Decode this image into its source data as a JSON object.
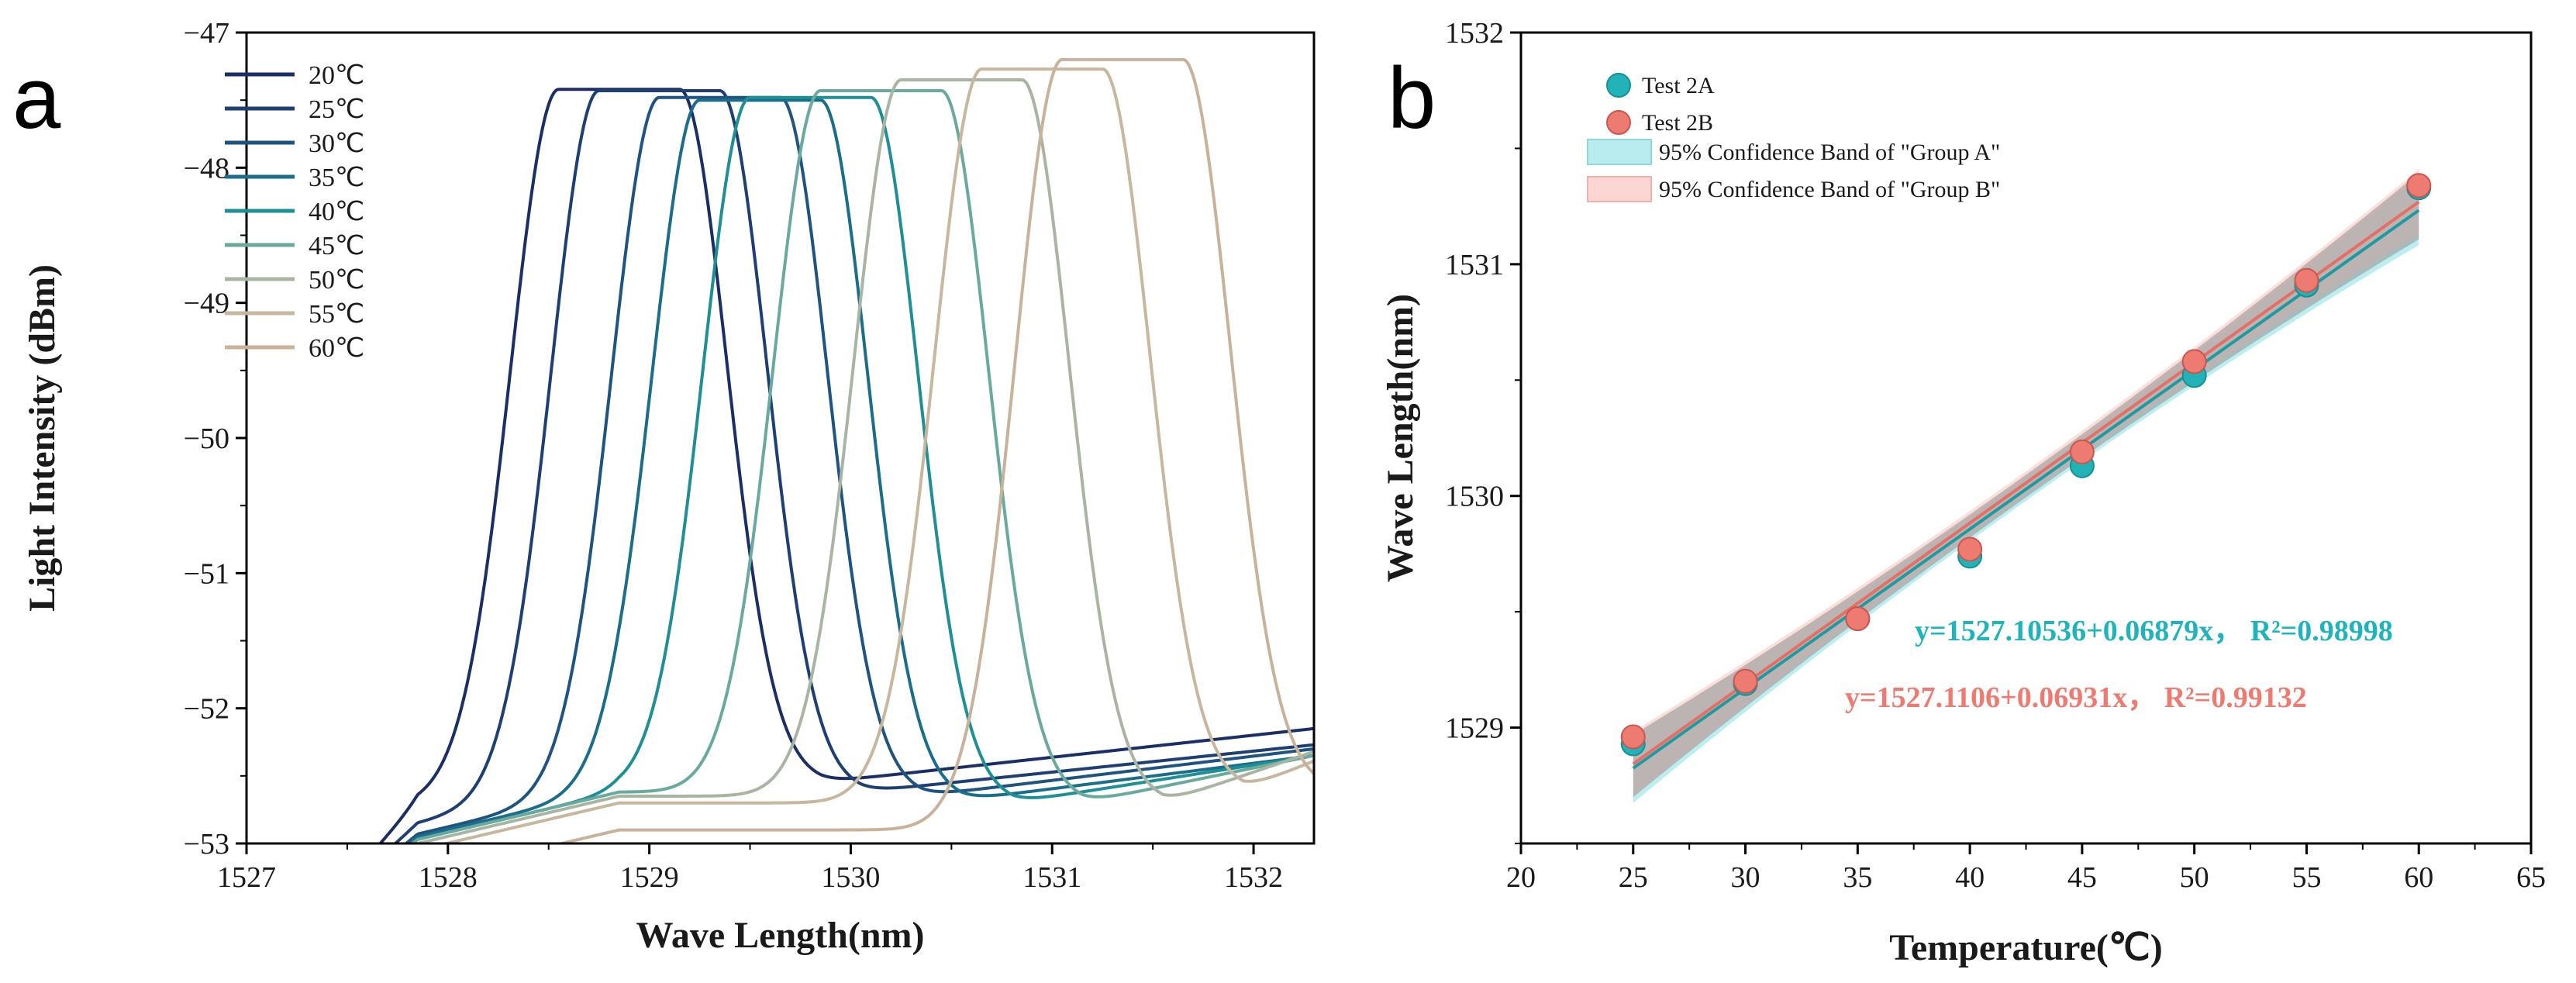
{
  "panels": {
    "a": "a",
    "b": "b"
  },
  "chart_data": [
    {
      "type": "line",
      "xlabel": "Wave Length(nm)",
      "ylabel": "Light Intensity (dBm)",
      "xlim": [
        1527,
        1532.3
      ],
      "ylim": [
        -53,
        -47
      ],
      "xticks": [
        1527,
        1528,
        1529,
        1530,
        1531,
        1532
      ],
      "yticks": [
        -53,
        -52,
        -51,
        -50,
        -49,
        -48,
        -47
      ],
      "xtick_labels": [
        "1527",
        "1528",
        "1529",
        "1530",
        "1531",
        "1532"
      ],
      "ytick_labels": [
        "−53",
        "−52",
        "−51",
        "−50",
        "−49",
        "−48",
        "−47"
      ],
      "series": [
        {
          "name": "20℃",
          "color": "#1b2f66",
          "center": 1528.85,
          "peak": -47.42,
          "left_floor": -52.35,
          "right_floor": -52.55,
          "right_end": -52.15
        },
        {
          "name": "25℃",
          "color": "#1e3f74",
          "center": 1529.05,
          "peak": -47.43,
          "left_floor": -52.5,
          "right_floor": -52.62,
          "right_end": -52.27
        },
        {
          "name": "30℃",
          "color": "#1f5480",
          "center": 1529.35,
          "peak": -47.48,
          "left_floor": -52.58,
          "right_floor": -52.65,
          "right_end": -52.3
        },
        {
          "name": "35℃",
          "color": "#1b6e8a",
          "center": 1529.55,
          "peak": -47.5,
          "left_floor": -52.6,
          "right_floor": -52.68,
          "right_end": -52.35
        },
        {
          "name": "40℃",
          "color": "#1f8f96",
          "center": 1529.8,
          "peak": -47.48,
          "left_floor": -52.62,
          "right_floor": -52.7,
          "right_end": -52.35
        },
        {
          "name": "45℃",
          "color": "#6aa99d",
          "center": 1530.15,
          "peak": -47.43,
          "left_floor": -52.62,
          "right_floor": -52.7,
          "right_end": -52.35
        },
        {
          "name": "50℃",
          "color": "#a9b5a3",
          "center": 1530.55,
          "peak": -47.35,
          "left_floor": -52.65,
          "right_floor": -52.7,
          "right_end": -52.32
        },
        {
          "name": "55℃",
          "color": "#c7b79f",
          "center": 1530.95,
          "peak": -47.27,
          "left_floor": -52.7,
          "right_floor": -52.6,
          "right_end": -52.3
        },
        {
          "name": "60℃",
          "color": "#c8b39a",
          "center": 1531.35,
          "peak": -47.2,
          "left_floor": -52.9,
          "right_floor": -52.6,
          "right_end": -52.45
        }
      ]
    },
    {
      "type": "scatter",
      "xlabel": "Temperature(℃)",
      "ylabel": "Wave Length(nm)",
      "xlim": [
        20,
        65
      ],
      "ylim": [
        1528.5,
        1532
      ],
      "xticks": [
        20,
        25,
        30,
        35,
        40,
        45,
        50,
        55,
        60,
        65
      ],
      "yticks": [
        1529,
        1530,
        1531,
        1532
      ],
      "xtick_labels": [
        "20",
        "25",
        "30",
        "35",
        "40",
        "45",
        "50",
        "55",
        "60",
        "65"
      ],
      "ytick_labels": [
        "1529",
        "1530",
        "1531",
        "1532"
      ],
      "x": [
        25,
        30,
        35,
        40,
        45,
        50,
        55,
        60
      ],
      "series": [
        {
          "name": "Test 2A",
          "color": "#21b3b8",
          "values": [
            1528.93,
            1529.19,
            1529.47,
            1529.74,
            1530.13,
            1530.52,
            1530.91,
            1531.33
          ],
          "fit": {
            "intercept": 1527.10536,
            "slope": 0.06879
          }
        },
        {
          "name": "Test 2B",
          "color": "#ee7b72",
          "values": [
            1528.96,
            1529.2,
            1529.47,
            1529.77,
            1530.19,
            1530.58,
            1530.93,
            1531.34
          ],
          "fit": {
            "intercept": 1527.1106,
            "slope": 0.06931
          }
        }
      ],
      "bands": [
        {
          "name": "95% Confidence Band of \"Group A\"",
          "color": "#b8ecee"
        },
        {
          "name": "95% Confidence Band of \"Group B\"",
          "color": "#fbd6d2"
        }
      ],
      "annotations": [
        {
          "text": "y=1527.10536+0.06879x， R²=0.98998",
          "color": "#1fb4bb"
        },
        {
          "text": "y=1527.1106+0.06931x， R²=0.99132",
          "color": "#ee7b72"
        }
      ]
    }
  ]
}
